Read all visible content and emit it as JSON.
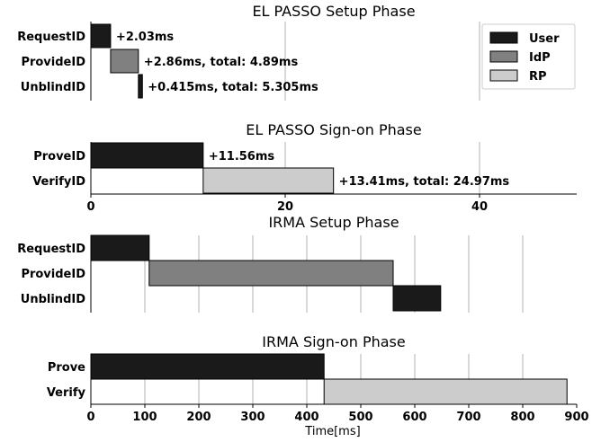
{
  "colors": {
    "User": "#1a1a1a",
    "IdP": "#808080",
    "RP": "#cccccc"
  },
  "legend": [
    {
      "label": "User",
      "color": "#1a1a1a"
    },
    {
      "label": "IdP",
      "color": "#808080"
    },
    {
      "label": "RP",
      "color": "#cccccc"
    }
  ],
  "xlabel": "Time[ms]",
  "chart_data": [
    {
      "type": "bar",
      "orientation": "horizontal-timeline",
      "title": "EL PASSO Setup Phase",
      "categories": [
        "RequestID",
        "ProvideID",
        "UnblindID"
      ],
      "bars": [
        {
          "category": "RequestID",
          "start": 0,
          "duration": 2.03,
          "actor": "User",
          "annotation": "+2.03ms"
        },
        {
          "category": "ProvideID",
          "start": 2.03,
          "duration": 2.86,
          "actor": "IdP",
          "annotation": "+2.86ms, total: 4.89ms"
        },
        {
          "category": "UnblindID",
          "start": 4.89,
          "duration": 0.415,
          "actor": "User",
          "annotation": "+0.415ms, total: 5.305ms"
        }
      ],
      "xlim": [
        0,
        50
      ],
      "grid": true,
      "legend": "top-right"
    },
    {
      "type": "bar",
      "orientation": "horizontal-timeline",
      "title": "EL PASSO Sign-on Phase",
      "categories": [
        "ProveID",
        "VerifyID"
      ],
      "bars": [
        {
          "category": "ProveID",
          "start": 0,
          "duration": 11.56,
          "actor": "User",
          "annotation": "+11.56ms"
        },
        {
          "category": "VerifyID",
          "start": 11.56,
          "duration": 13.41,
          "actor": "RP",
          "annotation": "+13.41ms, total: 24.97ms"
        }
      ],
      "xlim": [
        0,
        50
      ],
      "xticks": [
        0,
        20,
        40
      ],
      "grid": true
    },
    {
      "type": "bar",
      "orientation": "horizontal-timeline",
      "title": "IRMA Setup Phase",
      "categories": [
        "RequestID",
        "ProvideID",
        "UnblindID"
      ],
      "bars": [
        {
          "category": "RequestID",
          "start": 0,
          "duration": 108,
          "actor": "User"
        },
        {
          "category": "ProvideID",
          "start": 108,
          "duration": 452,
          "actor": "IdP"
        },
        {
          "category": "UnblindID",
          "start": 560,
          "duration": 88,
          "actor": "User"
        }
      ],
      "xlim": [
        0,
        900
      ],
      "grid": true
    },
    {
      "type": "bar",
      "orientation": "horizontal-timeline",
      "title": "IRMA Sign-on Phase",
      "categories": [
        "Prove",
        "Verify"
      ],
      "bars": [
        {
          "category": "Prove",
          "start": 0,
          "duration": 432,
          "actor": "User"
        },
        {
          "category": "Verify",
          "start": 432,
          "duration": 450,
          "actor": "RP"
        }
      ],
      "xlim": [
        0,
        900
      ],
      "xticks": [
        0,
        100,
        200,
        300,
        400,
        500,
        600,
        700,
        800,
        900
      ],
      "grid": true,
      "xlabel": "Time[ms]"
    }
  ]
}
